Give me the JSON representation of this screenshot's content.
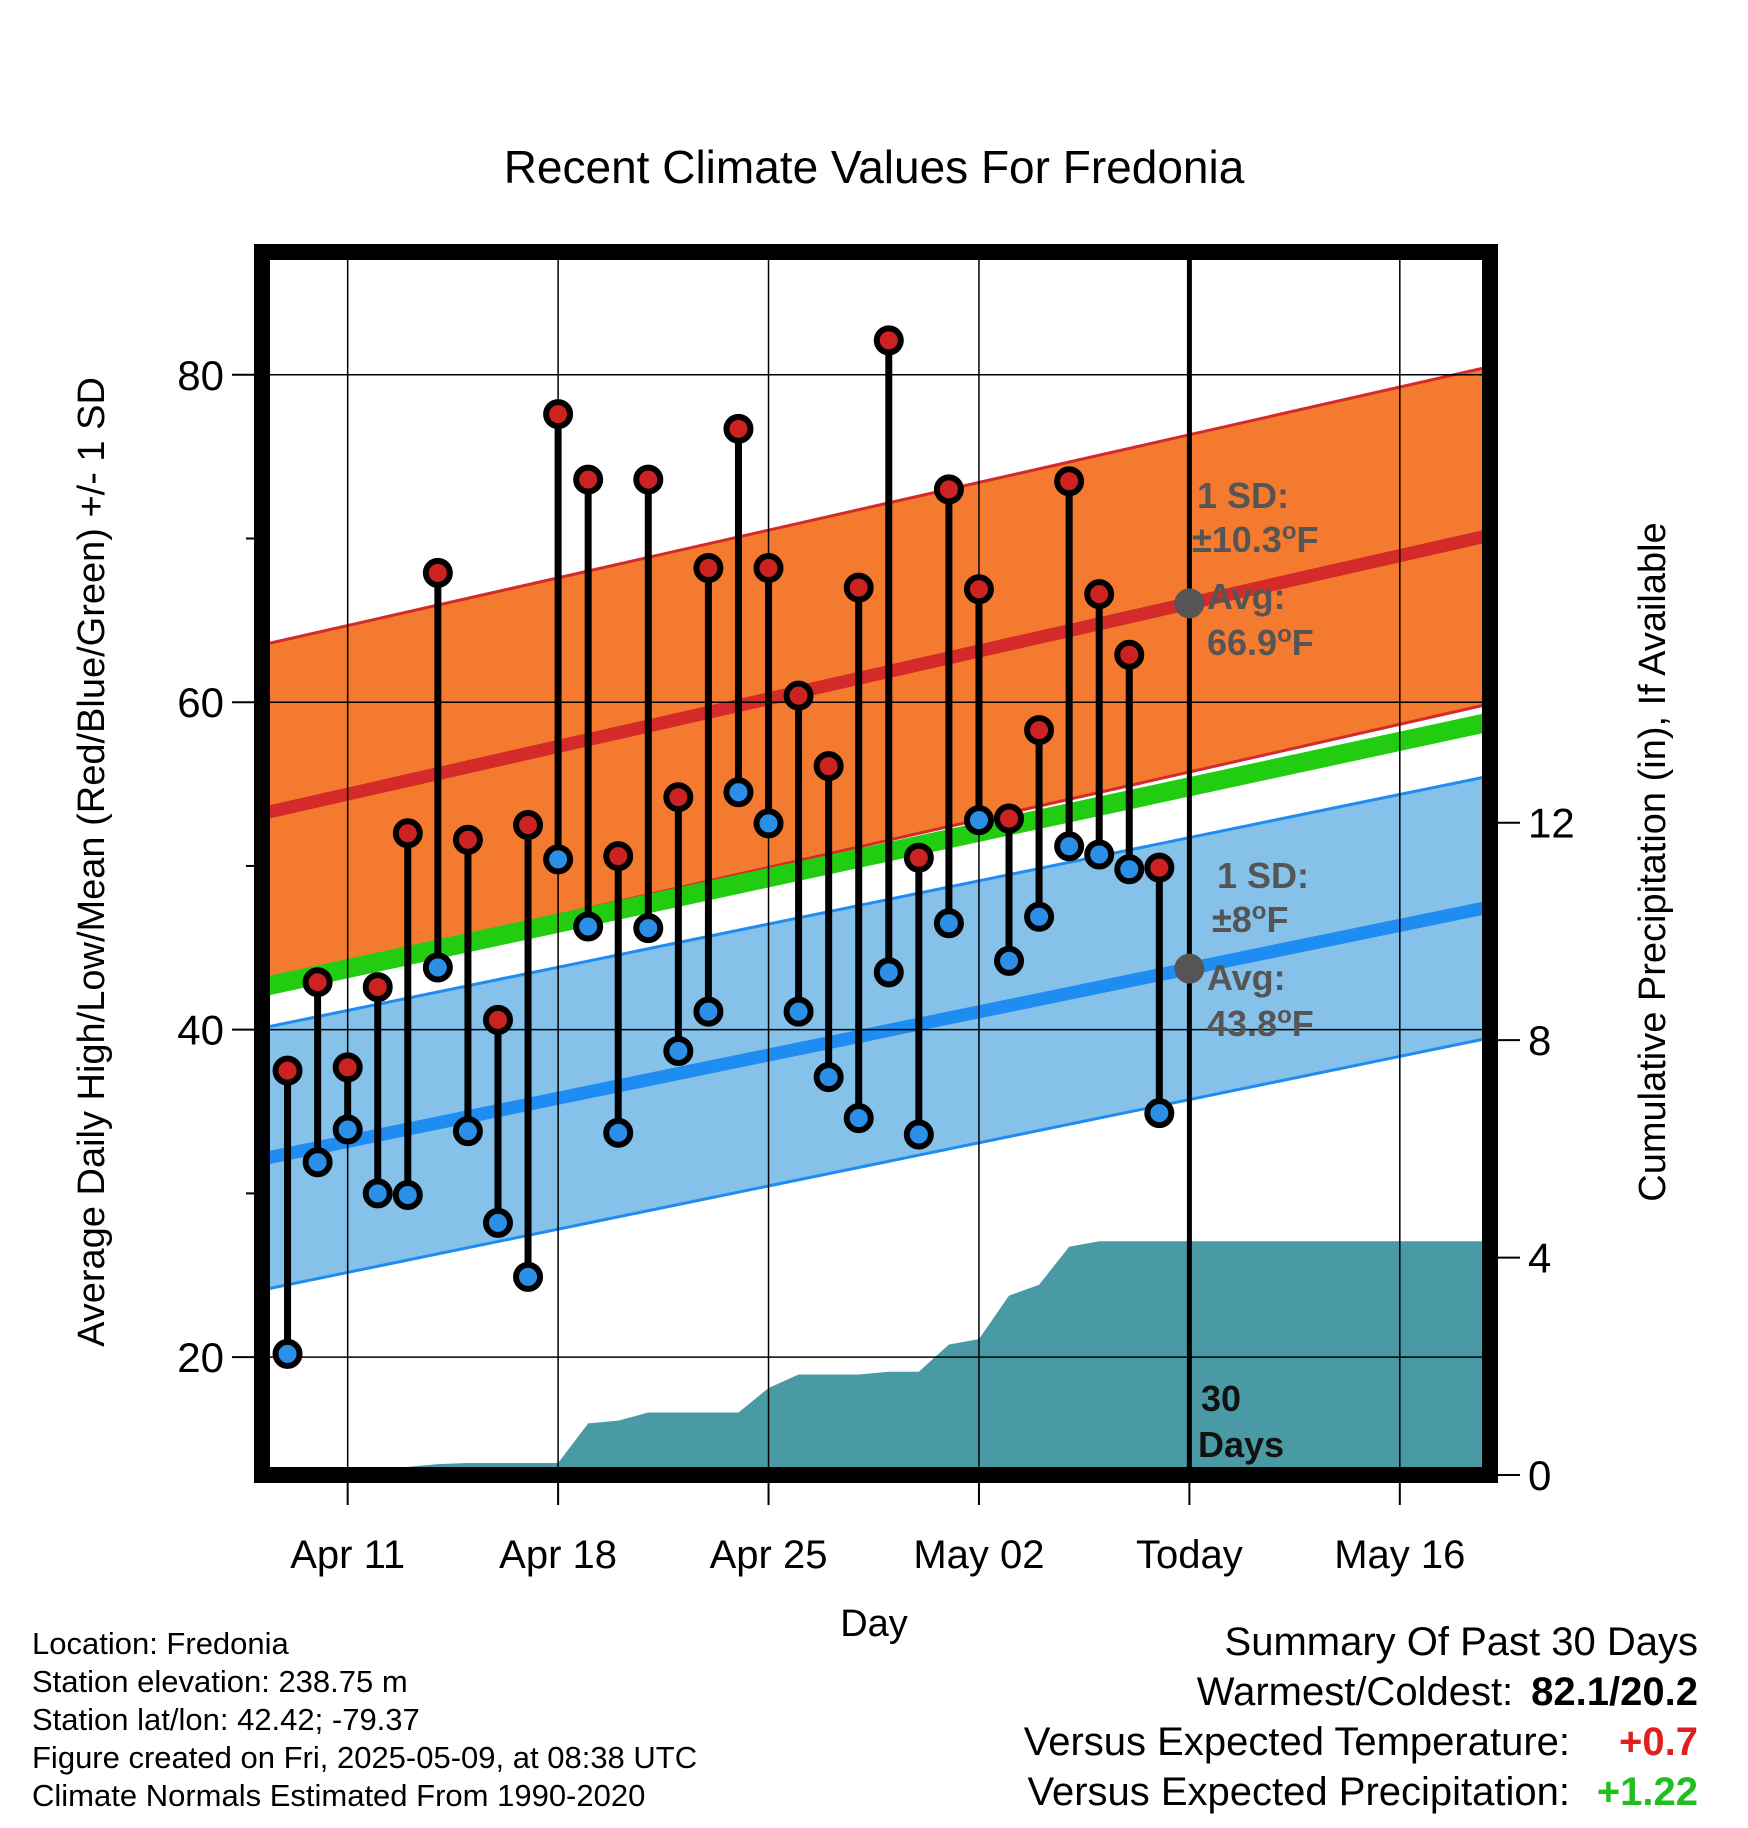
{
  "chart_data": {
    "type": "line",
    "title": "Recent Climate Values For Fredonia",
    "xlabel": "Day",
    "ylabel": "Average Daily High/Low/Mean (Red/Blue/Green) +/- 1 SD",
    "y2label": "Cumulative Precipitation (in), If Available",
    "x_tick_labels": [
      "Apr 11",
      "Apr 18",
      "Apr 25",
      "May 02",
      "Today",
      "May 16"
    ],
    "x_tick_days": [
      2,
      9,
      16,
      23,
      30,
      37
    ],
    "xlim_days": [
      -0.85,
      40
    ],
    "ylim": [
      12.8,
      87.5
    ],
    "y_ticks": [
      20,
      40,
      60,
      80
    ],
    "y2lim": [
      0,
      22.5
    ],
    "y2_ticks": [
      0,
      4,
      8,
      12
    ],
    "grid": true,
    "day_index_note_start": "Apr 09",
    "days": [
      0,
      1,
      2,
      3,
      4,
      5,
      6,
      7,
      8,
      9,
      10,
      11,
      12,
      13,
      14,
      15,
      16,
      17,
      18,
      19,
      20,
      21,
      22,
      23,
      24,
      25,
      26,
      27,
      28,
      29
    ],
    "highs": [
      37.5,
      42.9,
      37.7,
      42.6,
      52.0,
      67.9,
      51.6,
      40.6,
      52.5,
      77.6,
      73.6,
      50.6,
      73.6,
      54.2,
      68.2,
      76.7,
      68.2,
      60.4,
      56.1,
      67.0,
      82.1,
      50.5,
      73.0,
      66.9,
      52.9,
      58.3,
      73.5,
      66.6,
      62.9,
      49.9
    ],
    "lows": [
      20.2,
      31.9,
      33.9,
      30.0,
      29.9,
      43.8,
      33.8,
      28.2,
      24.9,
      50.4,
      46.3,
      33.7,
      46.2,
      38.7,
      41.1,
      54.5,
      52.6,
      41.1,
      37.1,
      34.6,
      43.5,
      33.6,
      46.5,
      52.8,
      44.2,
      46.9,
      51.2,
      50.7,
      49.8,
      34.9
    ],
    "normal_high": {
      "start": 53.2,
      "end": 70.2
    },
    "normal_low": {
      "start": 32.1,
      "end": 47.5
    },
    "normal_mean": {
      "start": 42.6,
      "end": 58.8
    },
    "high_sd": 10.3,
    "low_sd": 8.0,
    "precip_cumulative_days": [
      0,
      1,
      2,
      3,
      4,
      5,
      6,
      7,
      8,
      9,
      10,
      11,
      12,
      13,
      14,
      15,
      16,
      17,
      18,
      19,
      20,
      21,
      22,
      23,
      24,
      25,
      26,
      27,
      28,
      29
    ],
    "precip_cumulative": [
      0.0,
      0.05,
      0.1,
      0.12,
      0.15,
      0.2,
      0.22,
      0.22,
      0.22,
      0.22,
      0.95,
      1.0,
      1.15,
      1.15,
      1.15,
      1.15,
      1.6,
      1.85,
      1.85,
      1.85,
      1.9,
      1.9,
      2.4,
      2.5,
      3.3,
      3.5,
      4.2,
      4.3,
      4.3,
      4.3
    ],
    "today_day": 30,
    "annotations": {
      "high_sd_label": "1 SD:",
      "high_sd_value": "±10.3",
      "high_avg_label": "Avg:",
      "high_avg_value": "66.9",
      "low_sd_label": "1 SD:",
      "low_sd_value": "±8",
      "low_avg_label": "Avg:",
      "low_avg_value": "43.8",
      "deg_sup": "o",
      "unit": "F",
      "window_label_1": "30",
      "window_label_2": "Days"
    },
    "colors": {
      "high_band": "#f47a30",
      "high_line": "#d42a2a",
      "low_band": "#85c1e8",
      "low_line": "#1e8cf0",
      "mean_line": "#22cc11",
      "precip": "#4a9aa5",
      "high_dot": "#cc2222",
      "low_dot": "#2b8fe8",
      "annotation": "#555555"
    }
  },
  "info": {
    "location": "Location: Fredonia",
    "elevation": "Station elevation: 238.75 m",
    "latlon": "Station lat/lon: 42.42; -79.37",
    "created": "Figure created on Fri, 2025-05-09, at 08:38 UTC",
    "normals": "Climate Normals Estimated From 1990-2020"
  },
  "summary": {
    "heading": "Summary Of Past 30 Days",
    "warm_cold_label": "Warmest/Coldest:",
    "warm_cold_value": "82.1/20.2",
    "temp_label": "Versus Expected Temperature:",
    "temp_value": "+0.7",
    "precip_label": "Versus Expected Precipitation:",
    "precip_value": "+1.22"
  }
}
